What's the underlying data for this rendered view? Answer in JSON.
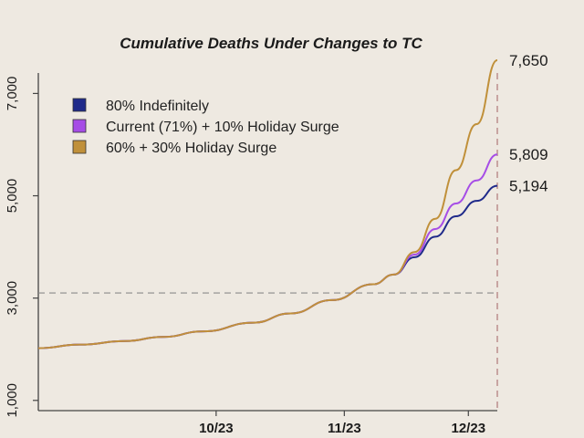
{
  "chart_data": {
    "type": "line",
    "title": "Cumulative Deaths Under Changes to TC",
    "xlabel": "",
    "ylabel": "",
    "x_ticks": [
      "10/23",
      "11/23",
      "12/23"
    ],
    "y_ticks": [
      "1,000",
      "3,000",
      "5,000",
      "7,000"
    ],
    "ylim": [
      800,
      7400
    ],
    "x": [
      "2020-09-10",
      "2020-09-20",
      "2020-10-01",
      "2020-10-10",
      "2020-10-20",
      "2020-11-01",
      "2020-11-10",
      "2020-11-20",
      "2020-11-30",
      "2020-12-05",
      "2020-12-10",
      "2020-12-15",
      "2020-12-20",
      "2020-12-25",
      "2020-12-30"
    ],
    "series": [
      {
        "name": "80% Indefinitely",
        "color": "#1f2a8a",
        "end_label": "5,194",
        "values": [
          2020,
          2090,
          2160,
          2240,
          2350,
          2520,
          2700,
          2960,
          3270,
          3460,
          3800,
          4200,
          4600,
          4900,
          5194
        ]
      },
      {
        "name": "Current (71%) + 10% Holiday Surge",
        "color": "#a64de6",
        "end_label": "5,809",
        "values": [
          2020,
          2090,
          2160,
          2240,
          2350,
          2520,
          2700,
          2960,
          3270,
          3460,
          3850,
          4350,
          4850,
          5300,
          5809
        ]
      },
      {
        "name": "60% + 30% Holiday Surge",
        "color": "#c0903a",
        "end_label": "7,650",
        "values": [
          2020,
          2090,
          2160,
          2240,
          2350,
          2520,
          2700,
          2960,
          3270,
          3460,
          3900,
          4550,
          5500,
          6400,
          7650
        ]
      }
    ],
    "reference_lines": {
      "horizontal_y": 3100,
      "vertical_x": "2020-12-30",
      "style": "dashed"
    },
    "legend_position": "top-left",
    "grid": false
  }
}
